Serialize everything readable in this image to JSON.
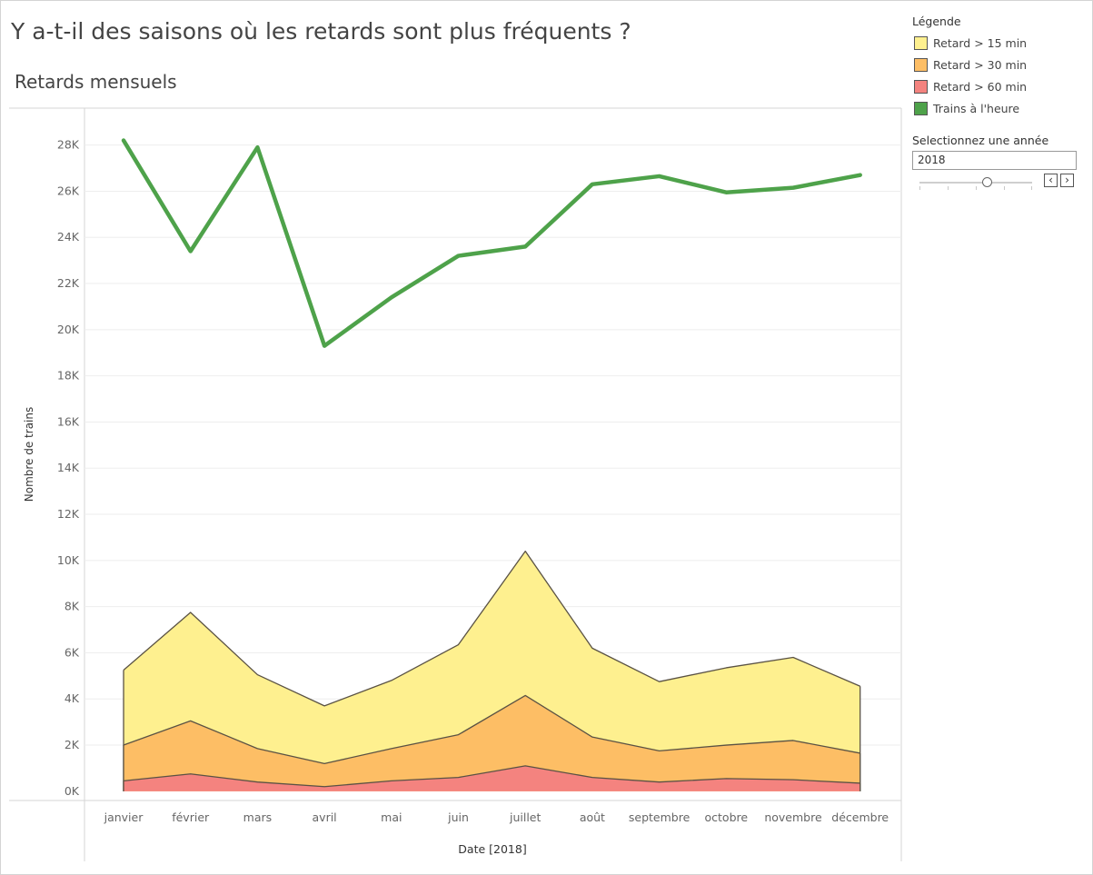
{
  "dashboard_title": "Y a-t-il des saisons où les retards sont plus fréquents ?",
  "sheet_title": "Retards mensuels",
  "legend": {
    "title": "Légende",
    "items": [
      {
        "label": "Retard > 15 min",
        "color": "#fef08f"
      },
      {
        "label": "Retard > 30 min",
        "color": "#fdbe65"
      },
      {
        "label": "Retard > 60 min",
        "color": "#f4837f"
      },
      {
        "label": "Trains à l'heure",
        "color": "#4ea24a"
      }
    ]
  },
  "year_parameter": {
    "label": "Selectionnez une année",
    "value": "2018",
    "prev_icon": "chevron-left-icon",
    "next_icon": "chevron-right-icon"
  },
  "chart_data": {
    "type": "area",
    "xlabel": "Date [2018]",
    "ylabel": "Nombre de trains",
    "ylim": [
      -400,
      29600
    ],
    "yticks": [
      0,
      2000,
      4000,
      6000,
      8000,
      10000,
      12000,
      14000,
      16000,
      18000,
      20000,
      22000,
      24000,
      26000,
      28000
    ],
    "ytick_labels": [
      "0K",
      "2K",
      "4K",
      "6K",
      "8K",
      "10K",
      "12K",
      "14K",
      "16K",
      "18K",
      "20K",
      "22K",
      "24K",
      "26K",
      "28K"
    ],
    "categories": [
      "janvier",
      "février",
      "mars",
      "avril",
      "mai",
      "juin",
      "juillet",
      "août",
      "septembre",
      "octobre",
      "novembre",
      "décembre"
    ],
    "grid": true,
    "series": [
      {
        "name": "Retard > 15 min",
        "kind": "area",
        "color": "#fef08f",
        "values": [
          5250,
          7750,
          5050,
          3700,
          4800,
          6350,
          10400,
          6200,
          4750,
          5350,
          5800,
          4550
        ]
      },
      {
        "name": "Retard > 30 min",
        "kind": "area",
        "color": "#fdbe65",
        "values": [
          2000,
          3050,
          1850,
          1200,
          1850,
          2450,
          4150,
          2350,
          1750,
          2000,
          2200,
          1650
        ]
      },
      {
        "name": "Retard > 60 min",
        "kind": "area",
        "color": "#f4837f",
        "values": [
          450,
          750,
          400,
          200,
          450,
          600,
          1100,
          600,
          400,
          550,
          500,
          350
        ]
      },
      {
        "name": "Trains à l'heure",
        "kind": "line",
        "color": "#4ea24a",
        "values": [
          28200,
          23400,
          27900,
          19300,
          21400,
          23200,
          23600,
          26300,
          26650,
          25950,
          26150,
          26700
        ]
      }
    ]
  }
}
